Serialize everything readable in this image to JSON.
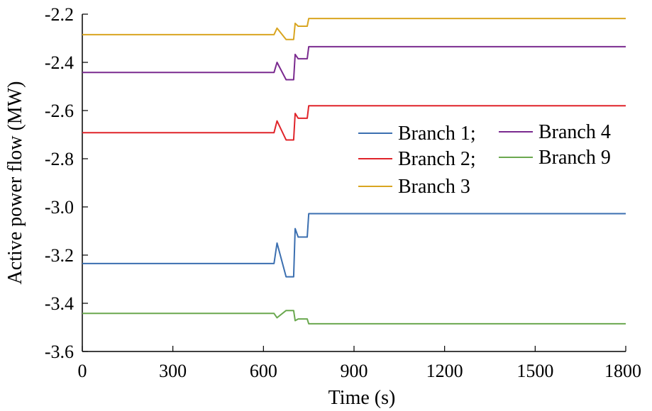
{
  "chart_data": {
    "type": "line",
    "xlabel": "Time (s)",
    "ylabel": "Active power flow (MW)",
    "xlim": [
      0,
      1800
    ],
    "ylim": [
      -3.6,
      -2.2
    ],
    "xticks": [
      0,
      300,
      600,
      900,
      1200,
      1500,
      1800
    ],
    "yticks": [
      -2.2,
      -2.4,
      -2.6,
      -2.8,
      -3.0,
      -3.2,
      -3.4,
      -3.6
    ],
    "ytick_labels": [
      "-2.2",
      "-2.4",
      "-2.6",
      "-2.8",
      "-3.0",
      "-3.2",
      "-3.4",
      "-3.6"
    ],
    "grid": false,
    "legend_position": "right",
    "series": [
      {
        "name": "Branch 1;",
        "color": "#3b6fb0",
        "x": [
          0,
          635,
          645,
          675,
          688,
          692,
          700,
          705,
          715,
          745,
          750,
          1800
        ],
        "y": [
          -3.235,
          -3.235,
          -3.15,
          -3.29,
          -3.29,
          -3.29,
          -3.29,
          -3.09,
          -3.125,
          -3.125,
          -3.028,
          -3.028
        ]
      },
      {
        "name": "Branch 2;",
        "color": "#e0242a",
        "x": [
          0,
          635,
          645,
          675,
          688,
          692,
          700,
          705,
          715,
          745,
          750,
          1800
        ],
        "y": [
          -2.692,
          -2.692,
          -2.643,
          -2.722,
          -2.722,
          -2.722,
          -2.722,
          -2.612,
          -2.632,
          -2.632,
          -2.58,
          -2.58
        ]
      },
      {
        "name": "Branch 3",
        "color": "#d9a520",
        "x": [
          0,
          635,
          645,
          675,
          688,
          692,
          700,
          705,
          715,
          745,
          750,
          1800
        ],
        "y": [
          -2.285,
          -2.285,
          -2.258,
          -2.305,
          -2.305,
          -2.305,
          -2.305,
          -2.238,
          -2.25,
          -2.25,
          -2.218,
          -2.218
        ]
      },
      {
        "name": "Branch 4",
        "color": "#7a2a8f",
        "x": [
          0,
          635,
          645,
          675,
          688,
          692,
          700,
          705,
          715,
          745,
          750,
          1800
        ],
        "y": [
          -2.442,
          -2.442,
          -2.4,
          -2.472,
          -2.472,
          -2.472,
          -2.472,
          -2.367,
          -2.385,
          -2.385,
          -2.335,
          -2.335
        ]
      },
      {
        "name": "Branch 9",
        "color": "#6aa84f",
        "x": [
          0,
          635,
          645,
          675,
          688,
          692,
          700,
          705,
          715,
          745,
          750,
          1800
        ],
        "y": [
          -3.442,
          -3.442,
          -3.46,
          -3.43,
          -3.43,
          -3.43,
          -3.43,
          -3.472,
          -3.465,
          -3.465,
          -3.485,
          -3.485
        ]
      }
    ]
  }
}
